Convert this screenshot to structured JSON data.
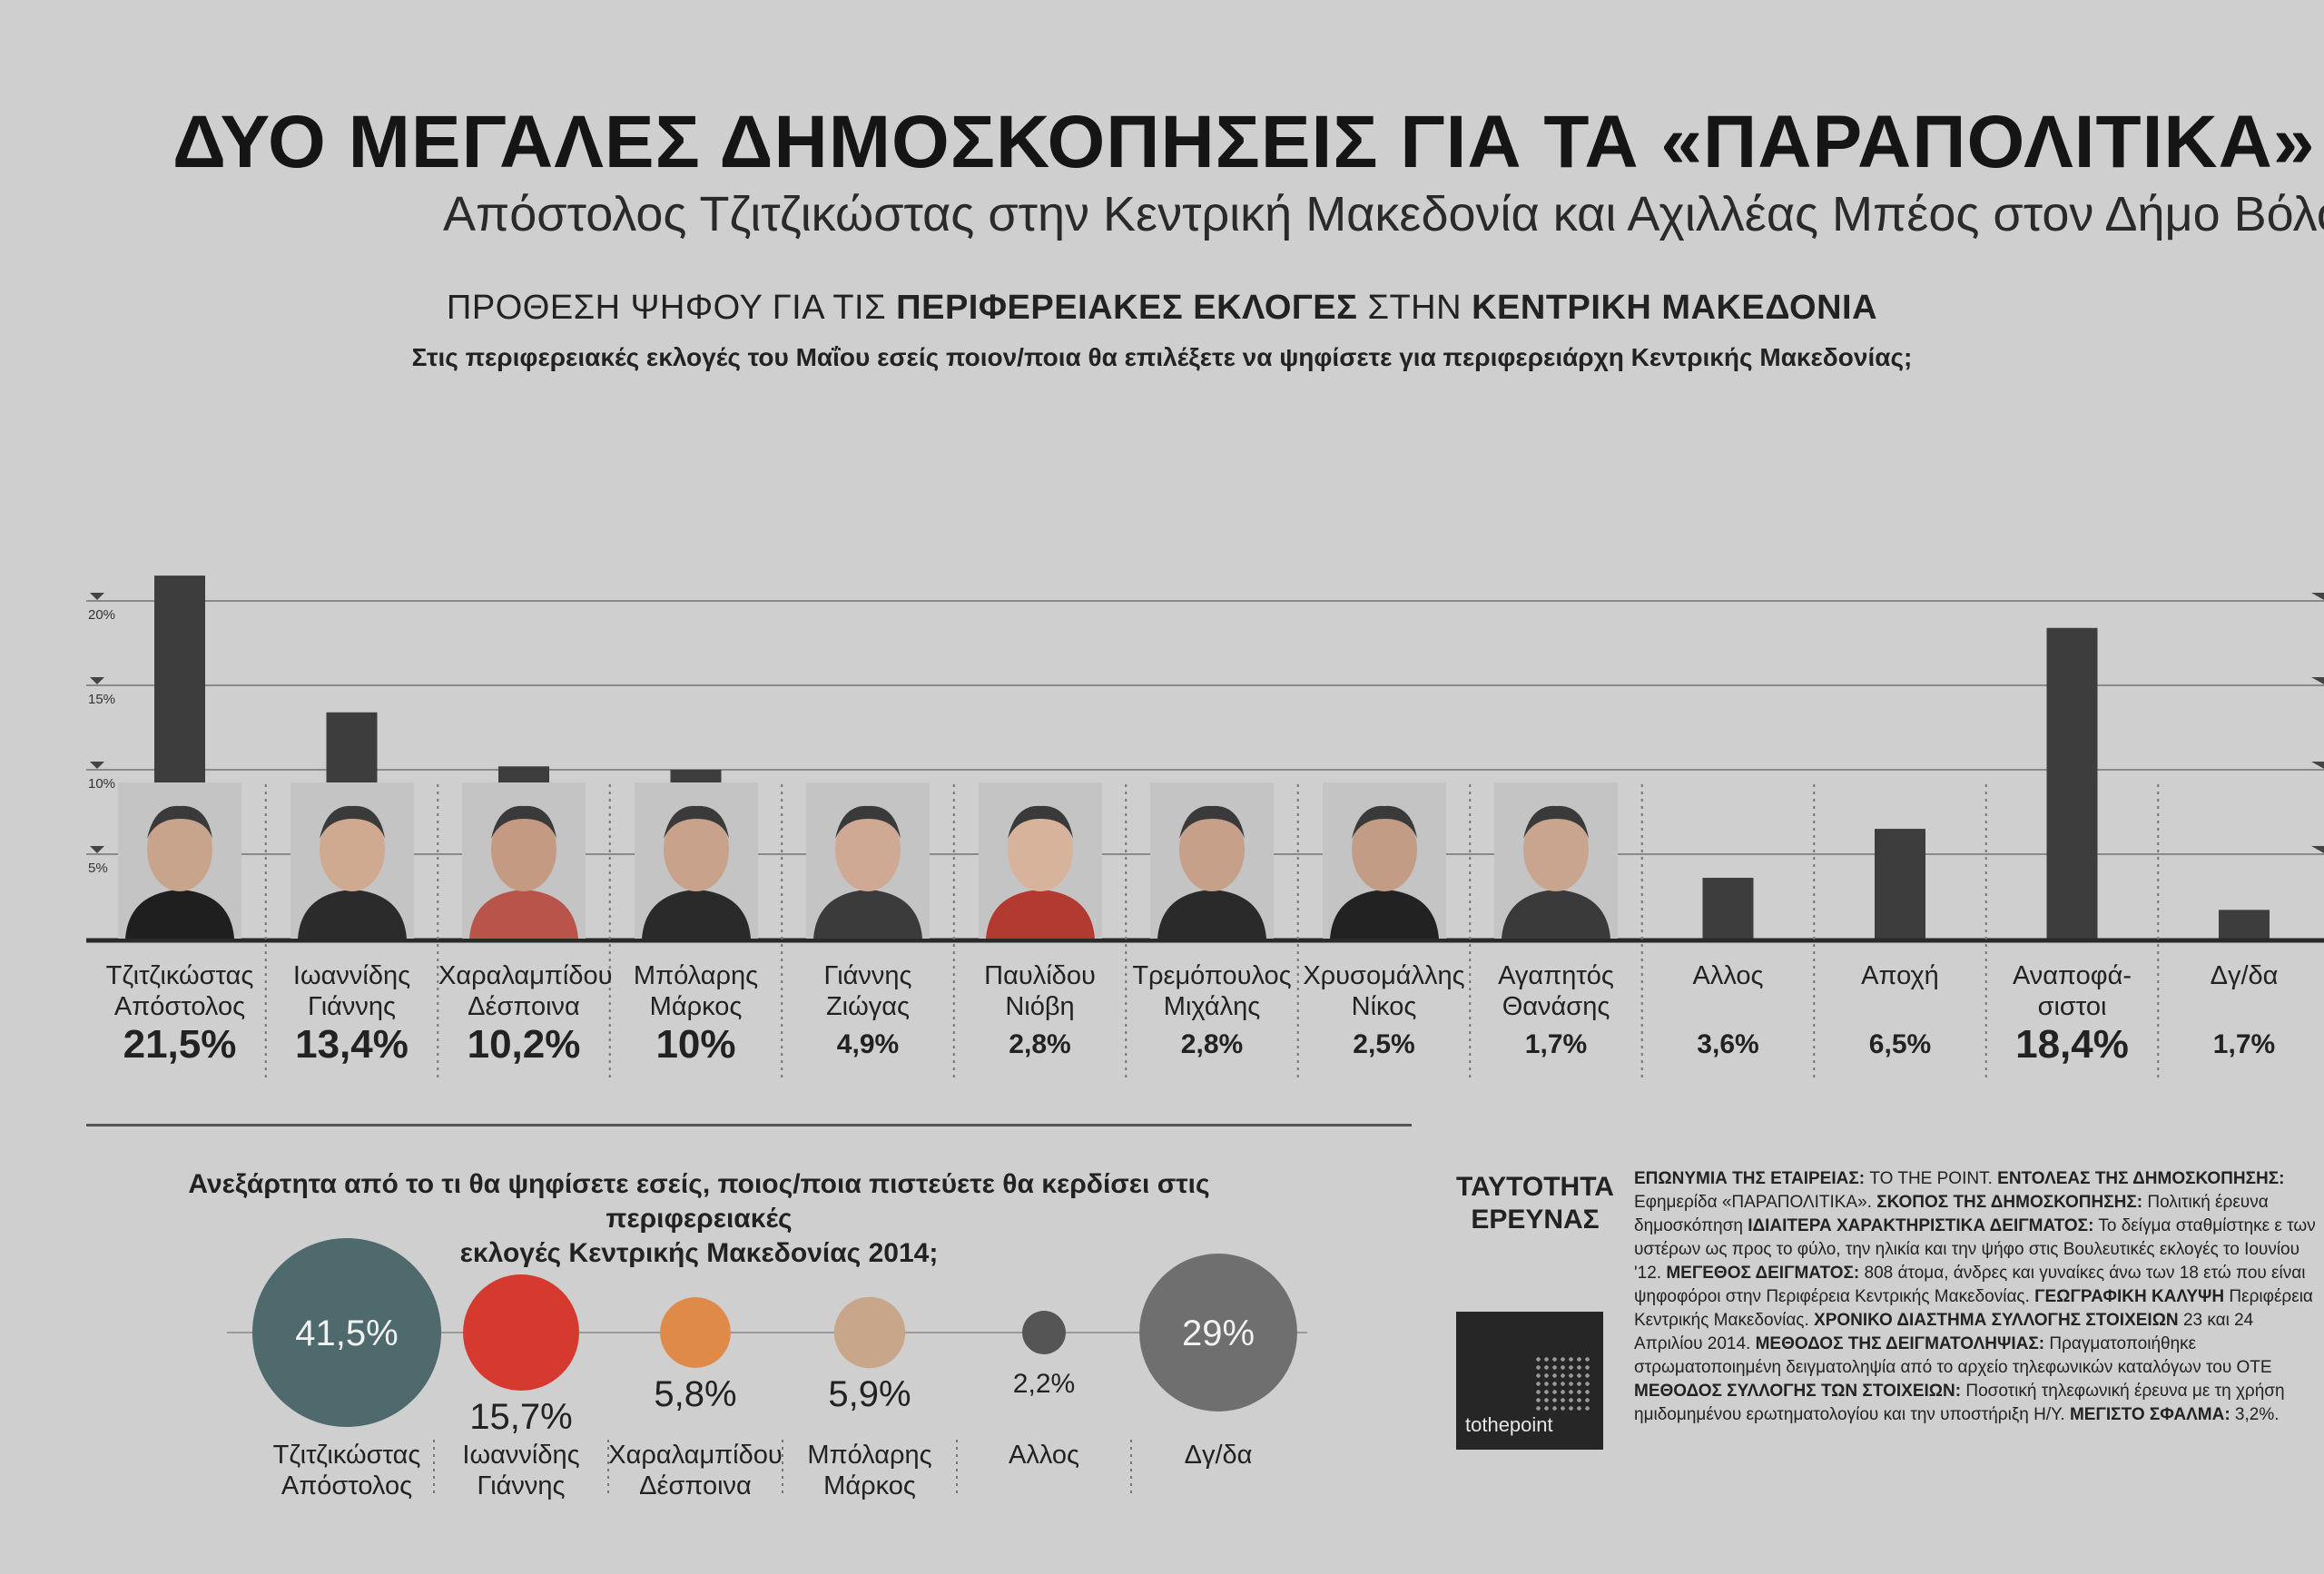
{
  "headline": "ΔΥΟ ΜΕΓΑΛΕΣ ΔΗΜΟΣΚΟΠΗΣΕΙΣ ΓΙΑ ΤΑ «ΠΑΡΑΠΟΛΙΤΙΚΑ» ΣΕ ΚΕΝΤ",
  "subheadline": "Απόστολος Τζιτζικώστας στην Κεντρική Μακεδονία και Αχιλλέας Μπέος στον Δήμο Βόλο",
  "chart_heading": {
    "part1": "ΠΡΟΘΕΣΗ ΨΗΦΟΥ ΓΙΑ ΤΙΣ ",
    "part2": "ΠΕΡΙΦΕΡΕΙΑΚΕΣ ΕΚΛΟΓΕΣ",
    "part3": " ΣΤΗΝ ",
    "part4": "ΚΕΝΤΡΙΚΗ ΜΑΚΕΔΟΝΙΑ"
  },
  "chart_question": "Στις περιφερειακές εκλογές του Μαΐου εσείς ποιον/ποια θα επιλέξετε να ψηφίσετε για περιφερειάρχη Κεντρικής Μακεδονίας;",
  "colors": {
    "bar": "#3d3d3d",
    "bubble_teal": "#4e6a6c",
    "bubble_red": "#d63a2e",
    "bubble_orange": "#e08a4a",
    "bubble_tan": "#c8a68a",
    "bubble_gray": "#6f6f6f"
  },
  "chart_data": [
    {
      "type": "bar",
      "ylim": [
        0,
        22
      ],
      "yticks": [
        5,
        10,
        15,
        20
      ],
      "ytick_labels": [
        "5%",
        "10%",
        "15%",
        "20%"
      ],
      "grid": true,
      "categories": [
        {
          "name_line1": "Τζιτζικώστας",
          "name_line2": "Απόστολος",
          "label": "21,5%",
          "big": true,
          "photo": true
        },
        {
          "name_line1": "Ιωαννίδης",
          "name_line2": "Γιάννης",
          "label": "13,4%",
          "big": true,
          "photo": true
        },
        {
          "name_line1": "Χαραλαμπίδου",
          "name_line2": "Δέσποινα",
          "label": "10,2%",
          "big": true,
          "photo": true
        },
        {
          "name_line1": "Μπόλαρης",
          "name_line2": "Μάρκος",
          "label": "10%",
          "big": true,
          "photo": true
        },
        {
          "name_line1": "Γιάννης",
          "name_line2": "Ζιώγας",
          "label": "4,9%",
          "big": false,
          "photo": true
        },
        {
          "name_line1": "Παυλίδου",
          "name_line2": "Νιόβη",
          "label": "2,8%",
          "big": false,
          "photo": true
        },
        {
          "name_line1": "Τρεμόπουλος",
          "name_line2": "Μιχάλης",
          "label": "2,8%",
          "big": false,
          "photo": true
        },
        {
          "name_line1": "Χρυσομάλλης",
          "name_line2": "Νίκος",
          "label": "2,5%",
          "big": false,
          "photo": true
        },
        {
          "name_line1": "Αγαπητός",
          "name_line2": "Θανάσης",
          "label": "1,7%",
          "big": false,
          "photo": true
        },
        {
          "name_line1": "Αλλος",
          "name_line2": "",
          "label": "3,6%",
          "big": false,
          "photo": false
        },
        {
          "name_line1": "Αποχή",
          "name_line2": "",
          "label": "6,5%",
          "big": false,
          "photo": false
        },
        {
          "name_line1": "Αναποφά-",
          "name_line2": "σιστοι",
          "label": "18,4%",
          "big": true,
          "photo": false
        },
        {
          "name_line1": "Δγ/δα",
          "name_line2": "",
          "label": "1,7%",
          "big": false,
          "photo": false
        }
      ],
      "values": [
        21.5,
        13.4,
        10.2,
        10,
        4.9,
        2.8,
        2.8,
        2.5,
        1.7,
        3.6,
        6.5,
        18.4,
        1.7
      ]
    },
    {
      "type": "bubble",
      "question_line1": "Ανεξάρτητα από το τι θα ψηφίσετε εσείς, ποιος/ποια πιστεύετε θα κερδίσει στις περιφερειακές",
      "question_line2": "εκλογές Κεντρικής Μακεδονίας 2014;",
      "categories": [
        {
          "name_line1": "Τζιτζικώστας",
          "name_line2": "Απόστολος",
          "label": "41,5%",
          "color": "#4e6a6c",
          "label_inside": true
        },
        {
          "name_line1": "Ιωαννίδης",
          "name_line2": "Γιάννης",
          "label": "15,7%",
          "color": "#d63a2e",
          "label_inside": false
        },
        {
          "name_line1": "Χαραλαμπίδου",
          "name_line2": "Δέσποινα",
          "label": "5,8%",
          "color": "#e08a4a",
          "label_inside": false
        },
        {
          "name_line1": "Μπόλαρης",
          "name_line2": "Μάρκος",
          "label": "5,9%",
          "color": "#c8a68a",
          "label_inside": false
        },
        {
          "name_line1": "Αλλος",
          "name_line2": "",
          "label": "2,2%",
          "color": "#555555",
          "label_inside": false
        },
        {
          "name_line1": "Δγ/δα",
          "name_line2": "",
          "label": "29%",
          "color": "#6f6f6f",
          "label_inside": true
        }
      ],
      "values": [
        41.5,
        15.7,
        5.8,
        5.9,
        2.2,
        29
      ]
    }
  ],
  "identity": {
    "title_line1": "ΤΑΥΤΟΤΗΤΑ",
    "title_line2": "ΕΡΕΥΝΑΣ",
    "logo_text": "tothepoint",
    "p1_label": "ΕΠΩΝΥΜΙΑ ΤΗΣ ΕΤΑΙΡΕΙΑΣ:",
    "p1_text": " TO THE POINT. ",
    "p2_label": "ΕΝΤΟΛΕΑΣ ΤΗΣ ΔΗΜΟΣΚΟΠΗΣΗΣ:",
    "p2_text": " Εφημερίδα «ΠΑΡΑΠΟΛΙΤΙΚΑ». ",
    "p3_label": "ΣΚΟΠΟΣ ΤΗΣ ΔΗΜΟΣΚΟΠΗΣΗΣ:",
    "p3_text": " Πολιτική έρευνα δημοσκόπηση ",
    "p4_label": "ΙΔΙΑΙΤΕΡΑ ΧΑΡΑΚΤΗΡΙΣΤΙΚΑ ΔΕΙΓΜΑΤΟΣ:",
    "p4_text": " Το δείγμα σταθμίστηκε ε των υστέρων ως προς το φύλο, την ηλικία και την ψήφο στις Βουλευτικές εκλογές το Ιουνίου '12. ",
    "p5_label": "ΜΕΓΕΘΟΣ ΔΕΙΓΜΑΤΟΣ:",
    "p5_text": " 808 άτομα, άνδρες και γυναίκες άνω των 18 ετώ που είναι ψηφοφόροι στην Περιφέρεια Κεντρικής Μακεδονίας. ",
    "p6_label": "ΓΕΩΓΡΑΦΙΚΗ ΚΑΛΥΨΗ",
    "p6_text": " Περιφέρεια Κεντρικής Μακεδονίας. ",
    "p7_label": "ΧΡΟΝΙΚΟ ΔΙΑΣΤΗΜΑ ΣΥΛΛΟΓΗΣ ΣΤΟΙΧΕΙΩΝ",
    "p7_text": " 23 και 24 Απριλίου 2014. ",
    "p8_label": "ΜΕΘΟΔΟΣ ΤΗΣ ΔΕΙΓΜΑΤΟΛΗΨΙΑΣ:",
    "p8_text": " Πραγματοποιήθηκε στρωματοποιημένη δειγματοληψία από το αρχείο τηλεφωνικών καταλόγων του ΟΤΕ ",
    "p9_label": "ΜΕΘΟΔΟΣ ΣΥΛΛΟΓΗΣ ΤΩΝ ΣΤΟΙΧΕΙΩΝ:",
    "p9_text": " Ποσοτική τηλεφωνική έρευνα με τη χρήση ημιδομημένου ερωτηματολογίου και την υποστήριξη Η/Υ. ",
    "p10_label": "ΜΕΓΙΣΤΟ ΣΦΑΛΜΑ:",
    "p10_text": " 3,2%."
  }
}
